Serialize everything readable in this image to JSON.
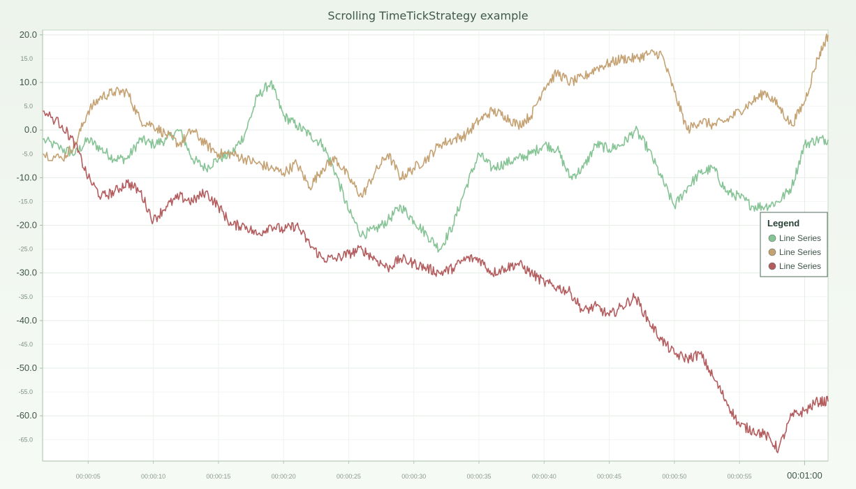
{
  "chart_data": {
    "type": "line",
    "title": "Scrolling TimeTickStrategy example",
    "xlabel": "",
    "ylabel": "",
    "x_unit": "seconds",
    "xlim": [
      1.5,
      61.8
    ],
    "ylim": [
      -69.5,
      21.0
    ],
    "grid": true,
    "y_major_ticks": [
      "20.0",
      "10.0",
      "0.0",
      "-10.0",
      "-20.0",
      "-30.0",
      "-40.0",
      "-50.0",
      "-60.0"
    ],
    "y_minor_ticks": [
      "15.0",
      "5.0",
      "-5.0",
      "-15.0",
      "-25.0",
      "-35.0",
      "-45.0",
      "-55.0",
      "-65.0"
    ],
    "x_ticks": [
      "00:00:05",
      "00:00:10",
      "00:00:15",
      "00:00:20",
      "00:00:25",
      "00:00:30",
      "00:00:35",
      "00:00:40",
      "00:00:45",
      "00:00:50",
      "00:00:55"
    ],
    "x_major_tick": "00:01:00",
    "legend": {
      "title": "Legend",
      "position": "right"
    },
    "series": [
      {
        "name": "Line Series",
        "color": "#86c395",
        "x": [
          1.5,
          3,
          4,
          5,
          6,
          7,
          8,
          9,
          10,
          11,
          12,
          13,
          14,
          15,
          16,
          17,
          18,
          19,
          20,
          21,
          22,
          23,
          24,
          25,
          26,
          27,
          28,
          29,
          30,
          31,
          32,
          33,
          34,
          35,
          36,
          37,
          38,
          39,
          40,
          41,
          42,
          43,
          44,
          45,
          46,
          47,
          48,
          49,
          50,
          51,
          52,
          53,
          54,
          55,
          56,
          57,
          58,
          59,
          60,
          61,
          61.8
        ],
        "y": [
          -2,
          -4,
          -5,
          -2,
          -4,
          -6,
          -6,
          -2,
          -3,
          -2,
          0,
          -6,
          -8,
          -6,
          -5,
          -1,
          7,
          10,
          3,
          1,
          -1,
          -3,
          -9,
          -17,
          -22,
          -21,
          -19,
          -16,
          -19,
          -22,
          -25,
          -20,
          -12,
          -5,
          -8,
          -7,
          -6,
          -5,
          -3,
          -4,
          -10,
          -8,
          -3,
          -4,
          -3,
          0,
          -4,
          -10,
          -16,
          -12,
          -9,
          -8,
          -13,
          -14,
          -16,
          -16,
          -15,
          -12,
          -3,
          -2,
          -2
        ]
      },
      {
        "name": "Line Series",
        "color": "#c5a273",
        "x": [
          1.5,
          3,
          4,
          5,
          6,
          7,
          8,
          9,
          10,
          11,
          12,
          13,
          14,
          15,
          16,
          17,
          18,
          19,
          20,
          21,
          22,
          23,
          24,
          25,
          26,
          27,
          28,
          29,
          30,
          31,
          32,
          33,
          34,
          35,
          36,
          37,
          38,
          39,
          40,
          41,
          42,
          43,
          44,
          45,
          46,
          47,
          48,
          49,
          50,
          51,
          52,
          53,
          54,
          55,
          56,
          57,
          58,
          59,
          60,
          61,
          61.8
        ],
        "y": [
          -5,
          -6,
          -3,
          4,
          7,
          8,
          8,
          2,
          1,
          -1,
          -3,
          0,
          -3,
          -5,
          -5,
          -6,
          -7,
          -8,
          -9,
          -7,
          -12,
          -8,
          -6,
          -10,
          -14,
          -9,
          -5,
          -10,
          -8,
          -6,
          -3,
          -2,
          -1,
          2,
          4,
          3,
          1,
          3,
          9,
          12,
          10,
          11,
          13,
          14,
          15,
          15,
          16,
          16,
          8,
          0,
          2,
          1,
          2,
          4,
          6,
          8,
          5,
          1,
          6,
          15,
          20
        ]
      },
      {
        "name": "Line Series",
        "color": "#b45d5f",
        "x": [
          1.5,
          3,
          4,
          5,
          6,
          7,
          8,
          9,
          10,
          11,
          12,
          13,
          14,
          15,
          16,
          17,
          18,
          19,
          20,
          21,
          22,
          23,
          24,
          25,
          26,
          27,
          28,
          29,
          30,
          31,
          32,
          33,
          34,
          35,
          36,
          37,
          38,
          39,
          40,
          41,
          42,
          43,
          44,
          45,
          46,
          47,
          48,
          49,
          50,
          51,
          52,
          53,
          54,
          55,
          56,
          57,
          58,
          59,
          60,
          61,
          61.8
        ],
        "y": [
          4,
          1,
          -3,
          -10,
          -14,
          -13,
          -11,
          -13,
          -19,
          -16,
          -14,
          -15,
          -13,
          -16,
          -20,
          -20,
          -22,
          -20,
          -21,
          -20,
          -24,
          -27,
          -27,
          -26,
          -25,
          -27,
          -29,
          -27,
          -28,
          -29,
          -30,
          -29,
          -27,
          -27,
          -30,
          -29,
          -28,
          -30,
          -32,
          -33,
          -34,
          -38,
          -37,
          -39,
          -37,
          -35,
          -40,
          -44,
          -47,
          -48,
          -47,
          -52,
          -57,
          -62,
          -63,
          -64,
          -67,
          -60,
          -59,
          -57,
          -57
        ]
      }
    ]
  }
}
